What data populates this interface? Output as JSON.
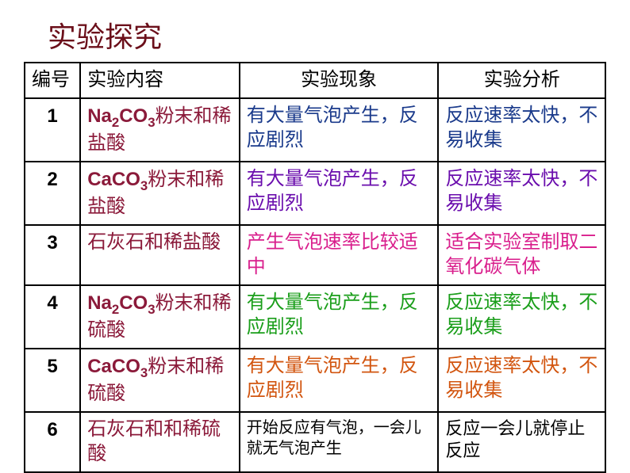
{
  "title": "实验探究",
  "title_color": "#6b0f1a",
  "headers": {
    "num": "编号",
    "content": "实验内容",
    "phenom": "实验现象",
    "analysis": "实验分析"
  },
  "header_color": "#000000",
  "rows": [
    {
      "num": "1",
      "content_formula": "Na|2|CO|3|",
      "content_suffix": "粉末和稀盐酸",
      "phenom": "有大量气泡产生，反应剧烈",
      "analysis": "反应速率太快，不易收集",
      "content_formula_color": "#8b1a3a",
      "content_suffix_color": "#8b1a3a",
      "phenom_color": "#1a3a8b",
      "analysis_color": "#1a3a8b"
    },
    {
      "num": "2",
      "content_formula": "CaCO|3|",
      "content_suffix": "粉末和稀盐酸",
      "phenom": "有大量气泡产生，反应剧烈",
      "analysis": "反应速率太快，不易收集",
      "content_formula_color": "#8b1a3a",
      "content_suffix_color": "#8b1a3a",
      "phenom_color": "#6a0dad",
      "analysis_color": "#6a0dad"
    },
    {
      "num": "3",
      "content_formula": "",
      "content_suffix": "石灰石和稀盐酸",
      "phenom": "产生气泡速率比较适中",
      "analysis": "适合实验室制取二氧化碳气体",
      "content_formula_color": "#8b1a3a",
      "content_suffix_color": "#8b1a3a",
      "phenom_color": "#d91e8c",
      "analysis_color": "#d91e8c"
    },
    {
      "num": "4",
      "content_formula": "Na|2|CO|3|",
      "content_suffix": "粉末和稀硫酸",
      "phenom": "有大量气泡产生，反应剧烈",
      "analysis": "反应速率太快，不易收集",
      "content_formula_color": "#8b1a3a",
      "content_suffix_color": "#8b1a3a",
      "phenom_color": "#1a9e1a",
      "analysis_color": "#1a9e1a"
    },
    {
      "num": "5",
      "content_formula": "CaCO|3|",
      "content_suffix": "粉末和稀硫酸",
      "phenom": "有大量气泡产生，反应剧烈",
      "analysis": "反应速率太快，不易收集",
      "content_formula_color": "#8b1a3a",
      "content_suffix_color": "#8b1a3a",
      "phenom_color": "#d2550f",
      "analysis_color": "#d2550f"
    },
    {
      "num": "6",
      "content_formula": "",
      "content_suffix": "石灰石和和稀硫酸",
      "phenom": "开始反应有气泡，一会儿就无气泡产生",
      "analysis": "反应一会儿就停止反应",
      "content_formula_color": "#8b1a3a",
      "content_suffix_color": "#8b1a3a",
      "phenom_color": "#000000",
      "analysis_color": "#000000",
      "phenom_fontsize": "20px",
      "analysis_fontsize": "22px"
    }
  ]
}
